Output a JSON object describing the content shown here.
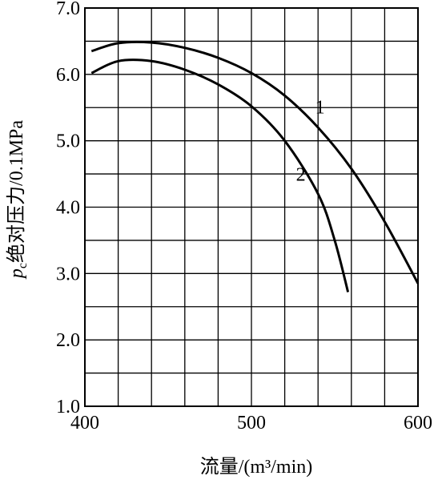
{
  "chart_data": {
    "type": "line",
    "title": "",
    "xlabel": "流量/(m³/min)",
    "ylabel_prefix": "p",
    "ylabel_sub": "c",
    "ylabel_rest": "绝对压力/0.1MPa",
    "xlim": [
      400,
      600
    ],
    "ylim": [
      1.0,
      7.0
    ],
    "x_ticks": [
      400,
      500,
      600
    ],
    "y_ticks": [
      1.0,
      2.0,
      3.0,
      4.0,
      5.0,
      6.0,
      7.0
    ],
    "x_tick_labels": [
      "400",
      "500",
      "600"
    ],
    "y_tick_labels": [
      "1.0",
      "2.0",
      "3.0",
      "4.0",
      "5.0",
      "6.0",
      "7.0"
    ],
    "grid": true,
    "legend": "none",
    "series": [
      {
        "name": "1",
        "x": [
          404,
          420,
          440,
          460,
          480,
          500,
          520,
          540,
          560,
          580,
          600
        ],
        "y": [
          6.35,
          6.47,
          6.48,
          6.4,
          6.25,
          6.02,
          5.68,
          5.2,
          4.58,
          3.78,
          2.85
        ]
      },
      {
        "name": "2",
        "x": [
          404,
          420,
          440,
          460,
          480,
          500,
          520,
          540,
          550,
          558
        ],
        "y": [
          6.02,
          6.2,
          6.2,
          6.07,
          5.85,
          5.52,
          5.0,
          4.2,
          3.5,
          2.72
        ]
      }
    ]
  }
}
